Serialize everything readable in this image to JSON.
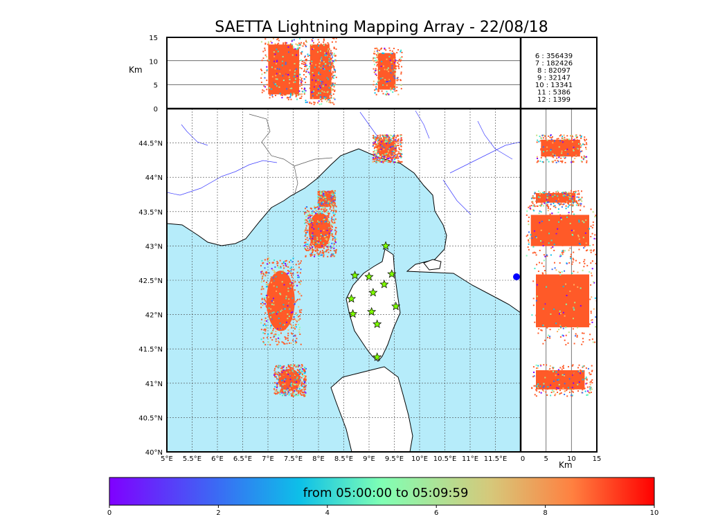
{
  "chart_data": {
    "type": "scatter",
    "title": "SAETTA Lightning Mapping Array - 22/08/18",
    "map": {
      "lon_range": [
        5,
        12
      ],
      "lat_range": [
        40,
        45
      ],
      "xticks": [
        "5°E",
        "5.5°E",
        "6°E",
        "6.5°E",
        "7°E",
        "7.5°E",
        "8°E",
        "8.5°E",
        "9°E",
        "9.5°E",
        "10°E",
        "10.5°E",
        "11°E",
        "11.5°E"
      ],
      "yticks": [
        "40°N",
        "40.5°N",
        "41°N",
        "41.5°N",
        "42°N",
        "42.5°N",
        "43°N",
        "43.5°N",
        "44°N",
        "44.5°N"
      ],
      "grid": true,
      "sea_color": "#b6ecfa",
      "stations": [
        {
          "lon": 9.33,
          "lat": 43.0
        },
        {
          "lon": 8.72,
          "lat": 42.57
        },
        {
          "lon": 9.0,
          "lat": 42.55
        },
        {
          "lon": 9.45,
          "lat": 42.59
        },
        {
          "lon": 9.3,
          "lat": 42.44
        },
        {
          "lon": 9.08,
          "lat": 42.32
        },
        {
          "lon": 8.65,
          "lat": 42.23
        },
        {
          "lon": 9.53,
          "lat": 42.12
        },
        {
          "lon": 8.68,
          "lat": 42.01
        },
        {
          "lon": 9.05,
          "lat": 42.04
        },
        {
          "lon": 9.16,
          "lat": 41.86
        },
        {
          "lon": 9.16,
          "lat": 41.38
        }
      ]
    },
    "top_panel": {
      "ylabel": "Km",
      "ylim": [
        0,
        15
      ],
      "yticks": [
        "0",
        "5",
        "10",
        "15"
      ],
      "ref_lines_km": [
        5,
        10
      ]
    },
    "side_panel": {
      "xlabel": "Km",
      "xlim": [
        0,
        15
      ],
      "xticks": [
        "0",
        "5",
        "10",
        "15"
      ],
      "ref_lines_km": [
        5,
        10
      ]
    },
    "clusters": [
      {
        "lon_min": 6.9,
        "lon_max": 7.6,
        "lat_min": 41.65,
        "lat_max": 42.75,
        "z_min": 2,
        "z_max": 15,
        "color_level": 9
      },
      {
        "lon_min": 7.15,
        "lon_max": 7.7,
        "lat_min": 40.85,
        "lat_max": 41.25,
        "z_min": 2,
        "z_max": 14,
        "color_level": 9
      },
      {
        "lon_min": 7.75,
        "lon_max": 8.3,
        "lat_min": 42.9,
        "lat_max": 43.55,
        "z_min": 1,
        "z_max": 15,
        "color_level": 9
      },
      {
        "lon_min": 8.0,
        "lon_max": 8.3,
        "lat_min": 43.6,
        "lat_max": 43.8,
        "z_min": 2,
        "z_max": 12,
        "color_level": 9
      },
      {
        "lon_min": 9.1,
        "lon_max": 9.6,
        "lat_min": 44.25,
        "lat_max": 44.6,
        "z_min": 3,
        "z_max": 13,
        "color_level": 9
      }
    ],
    "stats": [
      {
        "label": "6 :   356439",
        "color": "#000000"
      },
      {
        "label": "7 :   182426",
        "color": "#ff0000"
      },
      {
        "label": "8 :    82097",
        "color": "#000000"
      },
      {
        "label": "9 :    32147",
        "color": "#000000"
      },
      {
        "label": "10 :    13341",
        "color": "#000000"
      },
      {
        "label": "11 :     5386",
        "color": "#000000"
      },
      {
        "label": "12 :     1399",
        "color": "#000000"
      }
    ],
    "colorbar": {
      "label": "from 05:00:00 to 05:09:59",
      "range": [
        0,
        10
      ],
      "ticks": [
        "0",
        "2",
        "4",
        "6",
        "8",
        "10"
      ],
      "colormap": "rainbow"
    }
  }
}
